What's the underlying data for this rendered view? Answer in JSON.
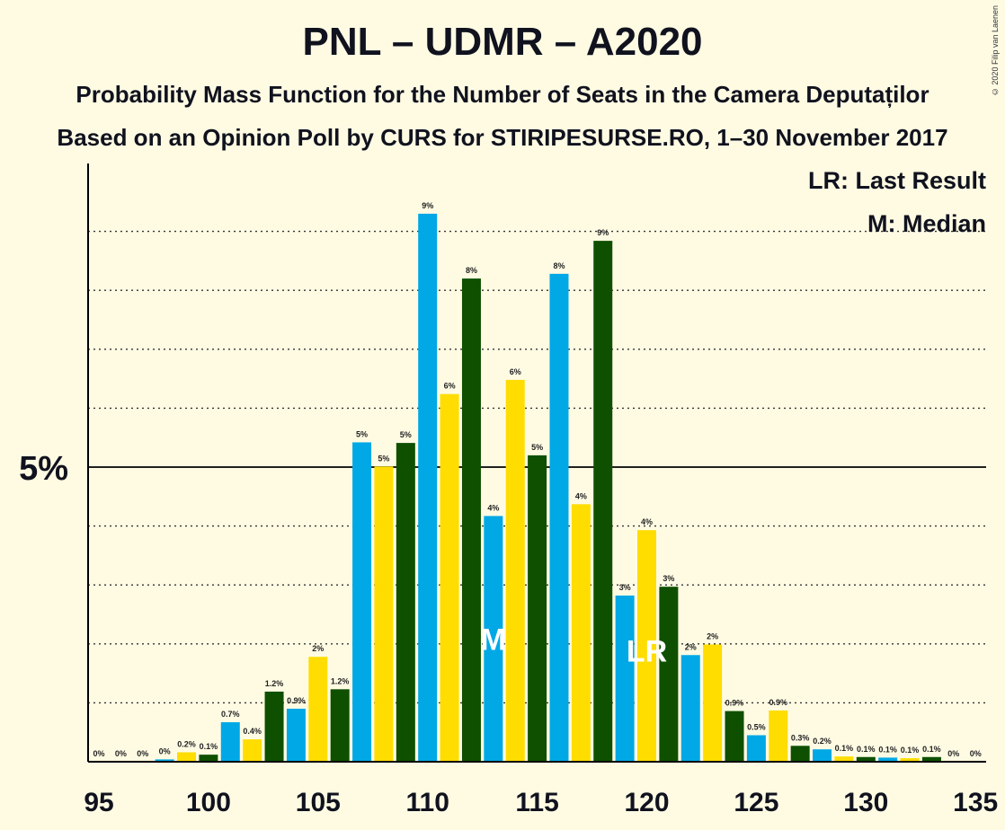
{
  "title": "PNL – UDMR – A2020",
  "subtitle": "Probability Mass Function for the Number of Seats in the Camera Deputaților",
  "subtitle2": "Based on an Opinion Poll by CURS for STIRIPESURSE.RO, 1–30 November 2017",
  "copyright": "© 2020 Filip van Laenen",
  "legend": {
    "lr": "LR: Last Result",
    "m": "M: Median"
  },
  "colors": {
    "background": "#FFFBE3",
    "blue": "#00A8E6",
    "yellow": "#FFDD00",
    "green": "#0E5000",
    "text": "#10121E"
  },
  "chart_data": {
    "type": "bar",
    "xlabel": "",
    "ylabel": "",
    "ylim": [
      0,
      10
    ],
    "x_ticks": [
      95,
      100,
      105,
      110,
      115,
      120,
      125,
      130,
      135
    ],
    "y_ticks": [
      {
        "value": 5,
        "label": "5%"
      }
    ],
    "grid": "dotted horizontal lines every 1%",
    "median_seat": 113,
    "median_label": "M",
    "last_result_seat": 120,
    "last_result_label": "LR",
    "bars": [
      {
        "seat": 95,
        "value": 0.0,
        "label": "0%"
      },
      {
        "seat": 96,
        "value": 0.0,
        "label": "0%"
      },
      {
        "seat": 97,
        "value": 0.0,
        "label": "0%"
      },
      {
        "seat": 98,
        "value": 0.04,
        "label": "0%"
      },
      {
        "seat": 99,
        "value": 0.16,
        "label": "0.2%"
      },
      {
        "seat": 100,
        "value": 0.12,
        "label": "0.1%"
      },
      {
        "seat": 101,
        "value": 0.67,
        "label": "0.7%"
      },
      {
        "seat": 102,
        "value": 0.38,
        "label": "0.4%"
      },
      {
        "seat": 103,
        "value": 1.19,
        "label": "1.2%"
      },
      {
        "seat": 104,
        "value": 0.9,
        "label": "0.9%"
      },
      {
        "seat": 105,
        "value": 1.78,
        "label": "2%"
      },
      {
        "seat": 106,
        "value": 1.23,
        "label": "1.2%"
      },
      {
        "seat": 107,
        "value": 5.42,
        "label": "5%"
      },
      {
        "seat": 108,
        "value": 5.01,
        "label": "5%"
      },
      {
        "seat": 109,
        "value": 5.41,
        "label": "5%"
      },
      {
        "seat": 110,
        "value": 9.3,
        "label": "9%"
      },
      {
        "seat": 111,
        "value": 6.24,
        "label": "6%"
      },
      {
        "seat": 112,
        "value": 8.2,
        "label": "8%"
      },
      {
        "seat": 113,
        "value": 4.17,
        "label": "4%"
      },
      {
        "seat": 114,
        "value": 6.48,
        "label": "6%"
      },
      {
        "seat": 115,
        "value": 5.2,
        "label": "5%"
      },
      {
        "seat": 116,
        "value": 8.28,
        "label": "8%"
      },
      {
        "seat": 117,
        "value": 4.37,
        "label": "4%"
      },
      {
        "seat": 118,
        "value": 8.84,
        "label": "9%"
      },
      {
        "seat": 119,
        "value": 2.82,
        "label": "3%"
      },
      {
        "seat": 120,
        "value": 3.93,
        "label": "4%"
      },
      {
        "seat": 121,
        "value": 2.97,
        "label": "3%"
      },
      {
        "seat": 122,
        "value": 1.81,
        "label": "2%"
      },
      {
        "seat": 123,
        "value": 1.99,
        "label": "2%"
      },
      {
        "seat": 124,
        "value": 0.86,
        "label": "0.9%"
      },
      {
        "seat": 125,
        "value": 0.45,
        "label": "0.5%"
      },
      {
        "seat": 126,
        "value": 0.87,
        "label": "0.9%"
      },
      {
        "seat": 127,
        "value": 0.27,
        "label": "0.3%"
      },
      {
        "seat": 128,
        "value": 0.21,
        "label": "0.2%"
      },
      {
        "seat": 129,
        "value": 0.09,
        "label": "0.1%"
      },
      {
        "seat": 130,
        "value": 0.08,
        "label": "0.1%"
      },
      {
        "seat": 131,
        "value": 0.07,
        "label": "0.1%"
      },
      {
        "seat": 132,
        "value": 0.06,
        "label": "0.1%"
      },
      {
        "seat": 133,
        "value": 0.08,
        "label": "0.1%"
      },
      {
        "seat": 134,
        "value": 0.0,
        "label": "0%"
      },
      {
        "seat": 135,
        "value": 0.0,
        "label": "0%"
      }
    ]
  }
}
